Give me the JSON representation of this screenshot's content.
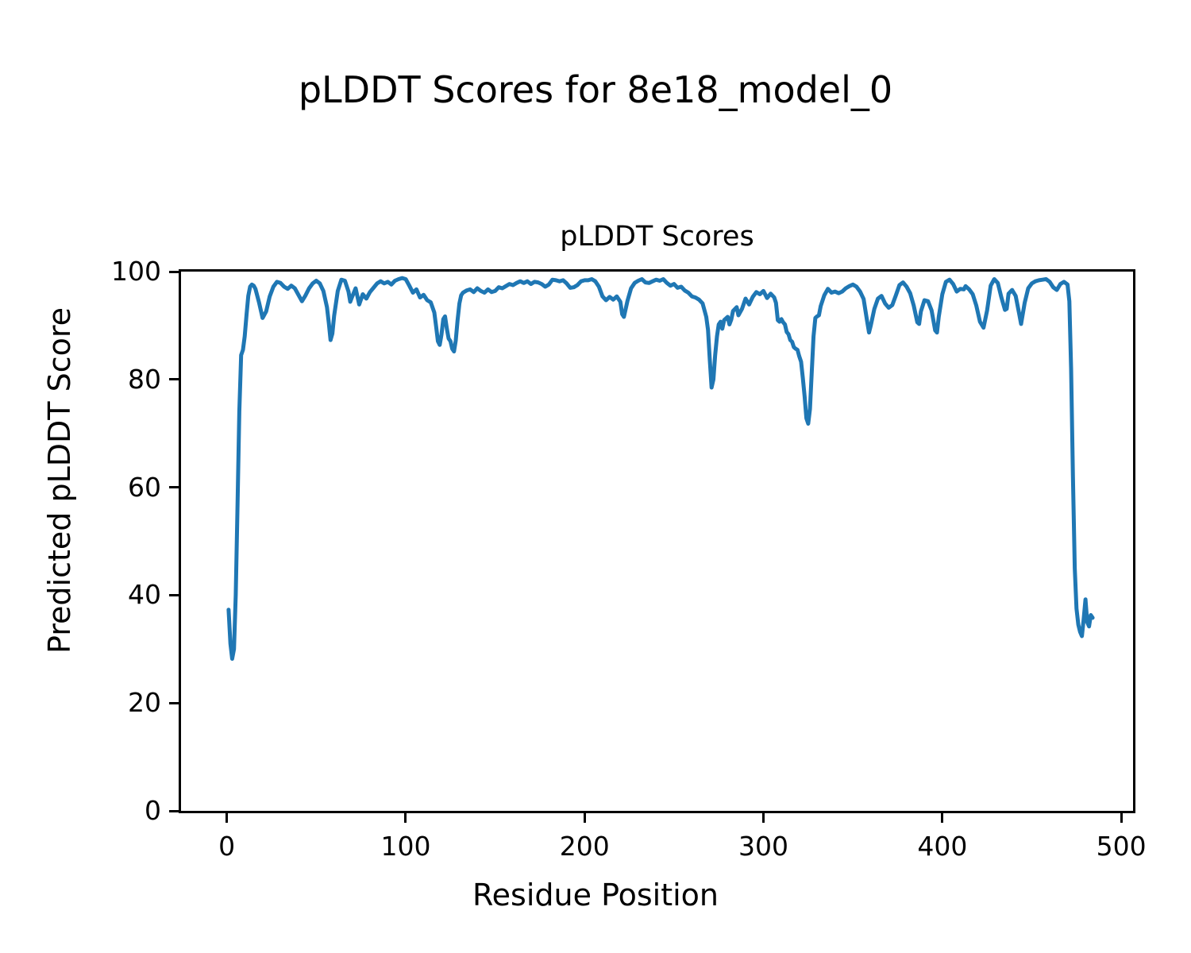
{
  "chart_data": {
    "type": "line",
    "suptitle": "pLDDT Scores for 8e18_model_0",
    "title": "pLDDT Scores",
    "xlabel": "Residue Position",
    "ylabel": "Predicted pLDDT Score",
    "xlim": [
      -25.6,
      506.6
    ],
    "ylim": [
      0,
      100
    ],
    "x_ticks": [
      0,
      100,
      200,
      300,
      400,
      500
    ],
    "y_ticks": [
      0,
      20,
      40,
      60,
      80,
      100
    ],
    "grid": false,
    "legend_position": "none",
    "line_color": "#1f77b4",
    "line_width": 5,
    "series": [
      {
        "name": "pLDDT",
        "points": [
          [
            1,
            37.3
          ],
          [
            2,
            31.0
          ],
          [
            3,
            28.2
          ],
          [
            4,
            30.0
          ],
          [
            5,
            40.0
          ],
          [
            6,
            57.0
          ],
          [
            7,
            74.0
          ],
          [
            8,
            84.5
          ],
          [
            9,
            85.5
          ],
          [
            10,
            88.0
          ],
          [
            11,
            92.0
          ],
          [
            12,
            95.5
          ],
          [
            13,
            97.2
          ],
          [
            14,
            97.6
          ],
          [
            15,
            97.4
          ],
          [
            16,
            96.8
          ],
          [
            18,
            94.3
          ],
          [
            20,
            91.4
          ],
          [
            22,
            92.6
          ],
          [
            24,
            95.4
          ],
          [
            26,
            97.2
          ],
          [
            28,
            98.1
          ],
          [
            30,
            97.9
          ],
          [
            32,
            97.2
          ],
          [
            34,
            96.8
          ],
          [
            36,
            97.4
          ],
          [
            38,
            96.9
          ],
          [
            40,
            95.7
          ],
          [
            42,
            94.5
          ],
          [
            44,
            95.6
          ],
          [
            46,
            96.9
          ],
          [
            48,
            97.8
          ],
          [
            50,
            98.3
          ],
          [
            52,
            97.8
          ],
          [
            54,
            96.4
          ],
          [
            56,
            93.4
          ],
          [
            57,
            90.5
          ],
          [
            58,
            87.3
          ],
          [
            59,
            88.5
          ],
          [
            60,
            91.8
          ],
          [
            62,
            96.4
          ],
          [
            64,
            98.5
          ],
          [
            66,
            98.3
          ],
          [
            68,
            96.3
          ],
          [
            69,
            94.4
          ],
          [
            70,
            95.3
          ],
          [
            72,
            96.9
          ],
          [
            74,
            93.9
          ],
          [
            76,
            95.8
          ],
          [
            78,
            95.0
          ],
          [
            80,
            96.2
          ],
          [
            82,
            97.0
          ],
          [
            84,
            97.8
          ],
          [
            86,
            98.2
          ],
          [
            88,
            97.8
          ],
          [
            90,
            98.1
          ],
          [
            92,
            97.6
          ],
          [
            94,
            98.3
          ],
          [
            96,
            98.6
          ],
          [
            98,
            98.8
          ],
          [
            100,
            98.6
          ],
          [
            102,
            97.4
          ],
          [
            104,
            96.1
          ],
          [
            106,
            96.7
          ],
          [
            108,
            95.2
          ],
          [
            110,
            95.7
          ],
          [
            112,
            94.7
          ],
          [
            114,
            94.3
          ],
          [
            116,
            92.4
          ],
          [
            117,
            89.8
          ],
          [
            118,
            87.1
          ],
          [
            119,
            86.4
          ],
          [
            120,
            88.3
          ],
          [
            121,
            91.2
          ],
          [
            122,
            91.7
          ],
          [
            123,
            89.4
          ],
          [
            124,
            87.6
          ],
          [
            125,
            87.1
          ],
          [
            126,
            85.7
          ],
          [
            127,
            85.2
          ],
          [
            128,
            87.2
          ],
          [
            129,
            91.0
          ],
          [
            130,
            94.1
          ],
          [
            131,
            95.6
          ],
          [
            132,
            96.1
          ],
          [
            134,
            96.5
          ],
          [
            136,
            96.7
          ],
          [
            138,
            96.2
          ],
          [
            140,
            96.9
          ],
          [
            142,
            96.4
          ],
          [
            144,
            96.1
          ],
          [
            146,
            96.7
          ],
          [
            148,
            96.2
          ],
          [
            150,
            96.4
          ],
          [
            152,
            97.1
          ],
          [
            154,
            96.9
          ],
          [
            156,
            97.3
          ],
          [
            158,
            97.7
          ],
          [
            160,
            97.5
          ],
          [
            162,
            97.9
          ],
          [
            164,
            98.2
          ],
          [
            166,
            97.9
          ],
          [
            168,
            98.2
          ],
          [
            170,
            97.7
          ],
          [
            172,
            98.1
          ],
          [
            174,
            98.0
          ],
          [
            176,
            97.7
          ],
          [
            178,
            97.2
          ],
          [
            180,
            97.6
          ],
          [
            182,
            98.5
          ],
          [
            184,
            98.4
          ],
          [
            186,
            98.2
          ],
          [
            188,
            98.4
          ],
          [
            190,
            97.8
          ],
          [
            192,
            97.0
          ],
          [
            194,
            97.1
          ],
          [
            196,
            97.5
          ],
          [
            198,
            98.2
          ],
          [
            200,
            98.4
          ],
          [
            202,
            98.4
          ],
          [
            204,
            98.6
          ],
          [
            206,
            98.2
          ],
          [
            208,
            97.2
          ],
          [
            210,
            95.4
          ],
          [
            212,
            94.7
          ],
          [
            214,
            95.3
          ],
          [
            216,
            94.8
          ],
          [
            218,
            95.4
          ],
          [
            220,
            94.4
          ],
          [
            221,
            92.1
          ],
          [
            222,
            91.6
          ],
          [
            224,
            94.6
          ],
          [
            226,
            96.9
          ],
          [
            228,
            97.9
          ],
          [
            230,
            98.3
          ],
          [
            232,
            98.6
          ],
          [
            234,
            98.0
          ],
          [
            236,
            97.9
          ],
          [
            238,
            98.2
          ],
          [
            240,
            98.5
          ],
          [
            242,
            98.3
          ],
          [
            244,
            98.6
          ],
          [
            246,
            97.9
          ],
          [
            248,
            97.4
          ],
          [
            250,
            97.7
          ],
          [
            252,
            97.0
          ],
          [
            254,
            97.2
          ],
          [
            256,
            96.5
          ],
          [
            258,
            96.1
          ],
          [
            260,
            95.4
          ],
          [
            262,
            95.2
          ],
          [
            264,
            94.8
          ],
          [
            266,
            94.1
          ],
          [
            268,
            91.6
          ],
          [
            269,
            89.2
          ],
          [
            270,
            83.5
          ],
          [
            271,
            78.5
          ],
          [
            272,
            80.0
          ],
          [
            273,
            84.5
          ],
          [
            274,
            88.0
          ],
          [
            275,
            90.2
          ],
          [
            276,
            90.7
          ],
          [
            277,
            89.4
          ],
          [
            278,
            91.0
          ],
          [
            280,
            91.6
          ],
          [
            281,
            90.2
          ],
          [
            282,
            91.1
          ],
          [
            283,
            92.7
          ],
          [
            285,
            93.4
          ],
          [
            286,
            91.9
          ],
          [
            288,
            93.1
          ],
          [
            290,
            95.0
          ],
          [
            292,
            93.9
          ],
          [
            294,
            95.3
          ],
          [
            296,
            96.2
          ],
          [
            298,
            95.8
          ],
          [
            300,
            96.4
          ],
          [
            302,
            95.1
          ],
          [
            304,
            95.9
          ],
          [
            306,
            95.2
          ],
          [
            307,
            94.2
          ],
          [
            308,
            91.0
          ],
          [
            309,
            90.7
          ],
          [
            310,
            91.2
          ],
          [
            311,
            90.6
          ],
          [
            312,
            90.2
          ],
          [
            313,
            88.8
          ],
          [
            314,
            88.4
          ],
          [
            315,
            87.3
          ],
          [
            316,
            87.0
          ],
          [
            317,
            86.0
          ],
          [
            318,
            85.7
          ],
          [
            319,
            85.5
          ],
          [
            320,
            84.3
          ],
          [
            321,
            83.3
          ],
          [
            322,
            80.3
          ],
          [
            323,
            76.8
          ],
          [
            324,
            72.8
          ],
          [
            325,
            71.8
          ],
          [
            326,
            74.5
          ],
          [
            327,
            81.5
          ],
          [
            328,
            88.0
          ],
          [
            329,
            91.4
          ],
          [
            330,
            91.7
          ],
          [
            331,
            91.9
          ],
          [
            332,
            93.6
          ],
          [
            334,
            95.6
          ],
          [
            336,
            96.8
          ],
          [
            338,
            96.1
          ],
          [
            340,
            96.3
          ],
          [
            342,
            96.0
          ],
          [
            344,
            96.3
          ],
          [
            346,
            96.9
          ],
          [
            348,
            97.3
          ],
          [
            350,
            97.6
          ],
          [
            352,
            97.2
          ],
          [
            354,
            96.3
          ],
          [
            356,
            94.9
          ],
          [
            358,
            90.7
          ],
          [
            359,
            88.7
          ],
          [
            360,
            90.0
          ],
          [
            362,
            93.1
          ],
          [
            364,
            95.0
          ],
          [
            366,
            95.5
          ],
          [
            368,
            94.1
          ],
          [
            370,
            93.3
          ],
          [
            372,
            93.8
          ],
          [
            374,
            95.6
          ],
          [
            376,
            97.5
          ],
          [
            378,
            98.0
          ],
          [
            380,
            97.2
          ],
          [
            382,
            96.0
          ],
          [
            384,
            93.7
          ],
          [
            386,
            90.6
          ],
          [
            387,
            90.3
          ],
          [
            388,
            92.6
          ],
          [
            390,
            94.7
          ],
          [
            392,
            94.5
          ],
          [
            394,
            92.8
          ],
          [
            396,
            89.1
          ],
          [
            397,
            88.7
          ],
          [
            398,
            91.6
          ],
          [
            400,
            95.8
          ],
          [
            402,
            98.1
          ],
          [
            404,
            98.5
          ],
          [
            406,
            97.7
          ],
          [
            408,
            96.3
          ],
          [
            410,
            96.8
          ],
          [
            412,
            96.7
          ],
          [
            413,
            97.3
          ],
          [
            415,
            96.7
          ],
          [
            417,
            95.8
          ],
          [
            419,
            93.7
          ],
          [
            421,
            90.7
          ],
          [
            423,
            89.6
          ],
          [
            425,
            92.8
          ],
          [
            427,
            97.4
          ],
          [
            429,
            98.6
          ],
          [
            431,
            97.9
          ],
          [
            433,
            95.2
          ],
          [
            435,
            92.9
          ],
          [
            436,
            93.1
          ],
          [
            437,
            95.9
          ],
          [
            439,
            96.6
          ],
          [
            441,
            95.5
          ],
          [
            443,
            92.1
          ],
          [
            444,
            90.3
          ],
          [
            446,
            94.2
          ],
          [
            448,
            96.9
          ],
          [
            450,
            97.8
          ],
          [
            452,
            98.2
          ],
          [
            454,
            98.4
          ],
          [
            456,
            98.5
          ],
          [
            458,
            98.6
          ],
          [
            460,
            98.1
          ],
          [
            462,
            97.1
          ],
          [
            464,
            96.6
          ],
          [
            466,
            97.7
          ],
          [
            468,
            98.1
          ],
          [
            470,
            97.6
          ],
          [
            471,
            94.5
          ],
          [
            472,
            82.0
          ],
          [
            473,
            62.0
          ],
          [
            474,
            45.0
          ],
          [
            475,
            37.5
          ],
          [
            476,
            34.5
          ],
          [
            477,
            33.2
          ],
          [
            478,
            32.4
          ],
          [
            479,
            35.5
          ],
          [
            480,
            39.2
          ],
          [
            481,
            35.0
          ],
          [
            482,
            34.2
          ],
          [
            483,
            36.3
          ],
          [
            484,
            35.8
          ]
        ]
      }
    ]
  }
}
